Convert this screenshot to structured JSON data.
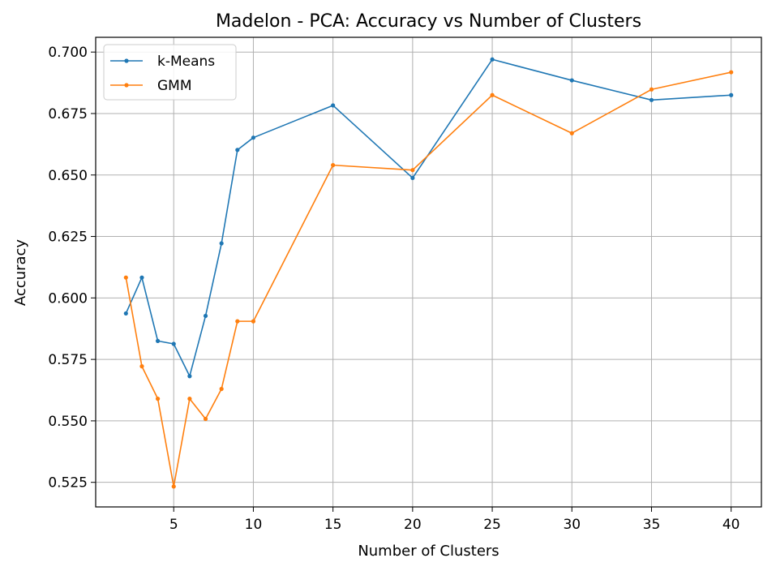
{
  "chart_data": {
    "type": "line",
    "title": "Madelon - PCA: Accuracy vs Number of Clusters",
    "xlabel": "Number of Clusters",
    "ylabel": "Accuracy",
    "xlim": [
      0.1,
      41.9
    ],
    "ylim": [
      0.515,
      0.706
    ],
    "xticks": [
      5,
      10,
      15,
      20,
      25,
      30,
      35,
      40
    ],
    "yticks": [
      0.525,
      0.55,
      0.575,
      0.6,
      0.625,
      0.65,
      0.675,
      0.7
    ],
    "grid": true,
    "legend_position": "top-left",
    "x": [
      2,
      3,
      4,
      5,
      6,
      7,
      8,
      9,
      10,
      15,
      20,
      25,
      30,
      35,
      40
    ],
    "series": [
      {
        "name": "k-Means",
        "color": "#1f77b4",
        "values": [
          0.5937,
          0.6083,
          0.5825,
          0.5813,
          0.5682,
          0.5927,
          0.6222,
          0.6602,
          0.6652,
          0.6783,
          0.6488,
          0.697,
          0.6885,
          0.6805,
          0.6825
        ]
      },
      {
        "name": "GMM",
        "color": "#ff7f0e",
        "values": [
          0.6083,
          0.5722,
          0.559,
          0.5233,
          0.559,
          0.5508,
          0.563,
          0.5905,
          0.5905,
          0.654,
          0.652,
          0.6825,
          0.667,
          0.6848,
          0.6918
        ]
      }
    ]
  }
}
